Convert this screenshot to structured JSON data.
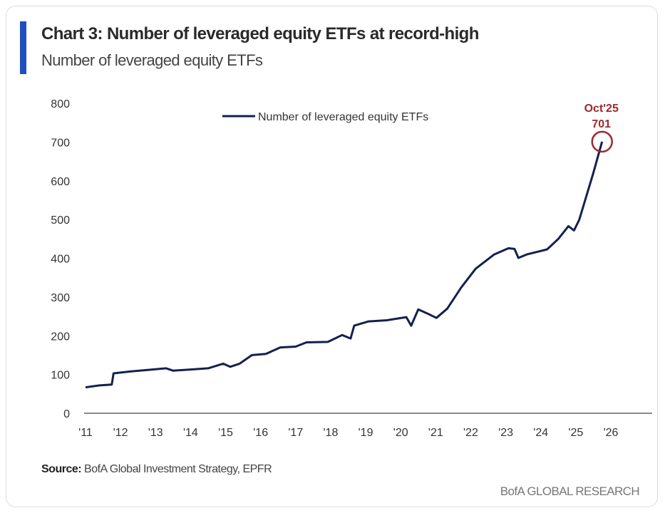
{
  "header": {
    "title": "Chart 3: Number of leveraged equity ETFs at record-high",
    "subtitle": "Number of leveraged equity ETFs",
    "accent_color": "#1f4fbf"
  },
  "footer": {
    "source_label": "Source:",
    "source_text": " BofA Global Investment Strategy, EPFR",
    "brand": "BofA GLOBAL RESEARCH"
  },
  "chart_data": {
    "type": "line",
    "title": "Chart 3: Number of leveraged equity ETFs at record-high",
    "ylabel": "",
    "xlabel": "",
    "xlim": [
      2011,
      2026
    ],
    "ylim": [
      0,
      800
    ],
    "y_ticks": [
      0,
      100,
      200,
      300,
      400,
      500,
      600,
      700,
      800
    ],
    "x_tick_labels": [
      "'11",
      "'12",
      "'13",
      "'14",
      "'15",
      "'16",
      "'17",
      "'18",
      "'19",
      "'20",
      "'21",
      "'22",
      "'23",
      "'24",
      "'25",
      "'26"
    ],
    "grid": false,
    "legend_position": "top-center",
    "series": [
      {
        "name": "Number of leveraged equity ETFs",
        "color": "#14204f",
        "x": [
          2011.0,
          2011.4,
          2011.75,
          2011.8,
          2012.3,
          2012.8,
          2013.3,
          2013.5,
          2014.0,
          2014.5,
          2014.93,
          2015.13,
          2015.4,
          2015.75,
          2016.15,
          2016.56,
          2017.0,
          2017.31,
          2017.92,
          2018.33,
          2018.57,
          2018.67,
          2019.08,
          2019.6,
          2020.16,
          2020.3,
          2020.5,
          2020.75,
          2021.02,
          2021.33,
          2021.73,
          2022.14,
          2022.67,
          2023.08,
          2023.25,
          2023.36,
          2023.6,
          2024.18,
          2024.5,
          2024.79,
          2024.95,
          2025.1,
          2025.3,
          2025.5,
          2025.75
        ],
        "y": [
          67,
          72,
          74,
          103,
          108,
          112,
          116,
          110,
          113,
          116,
          128,
          120,
          128,
          150,
          153,
          170,
          172,
          183,
          184,
          202,
          193,
          226,
          237,
          240,
          248,
          226,
          268,
          258,
          246,
          270,
          325,
          373,
          410,
          426,
          424,
          401,
          410,
          423,
          450,
          483,
          472,
          500,
          560,
          620,
          701
        ]
      }
    ],
    "annotation": {
      "label": "Oct'25",
      "value": "701",
      "x": 2025.75,
      "y": 701,
      "color": "#a0282d"
    }
  }
}
